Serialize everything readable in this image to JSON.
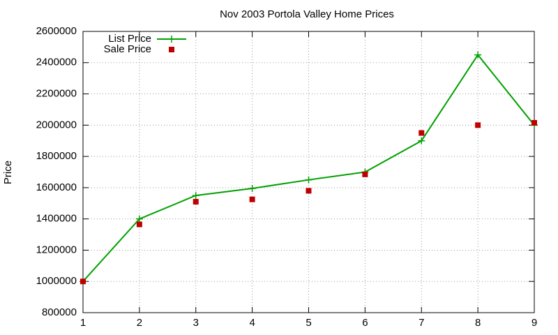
{
  "chart_data": {
    "type": "line",
    "title": "Nov 2003 Portola Valley Home Prices",
    "ylabel": "Price",
    "x": [
      1,
      2,
      3,
      4,
      5,
      6,
      7,
      8,
      9
    ],
    "series": [
      {
        "name": "List Price",
        "color": "#00a000",
        "style": "linespoints",
        "values": [
          1000000,
          1400000,
          1550000,
          1595000,
          1650000,
          1700000,
          1900000,
          2450000,
          2000000
        ]
      },
      {
        "name": "Sale Price",
        "color": "#c00000",
        "style": "points",
        "values": [
          1000000,
          1365000,
          1510000,
          1525000,
          1580000,
          1685000,
          1950000,
          2000000,
          2015000
        ]
      }
    ],
    "xlim": [
      1,
      9
    ],
    "xticks": [
      1,
      2,
      3,
      4,
      5,
      6,
      7,
      8,
      9
    ],
    "ylim": [
      800000,
      2600000
    ],
    "yticks": [
      800000,
      1000000,
      1200000,
      1400000,
      1600000,
      1800000,
      2000000,
      2200000,
      2400000,
      2600000
    ],
    "grid": true,
    "legend": "top-left"
  }
}
